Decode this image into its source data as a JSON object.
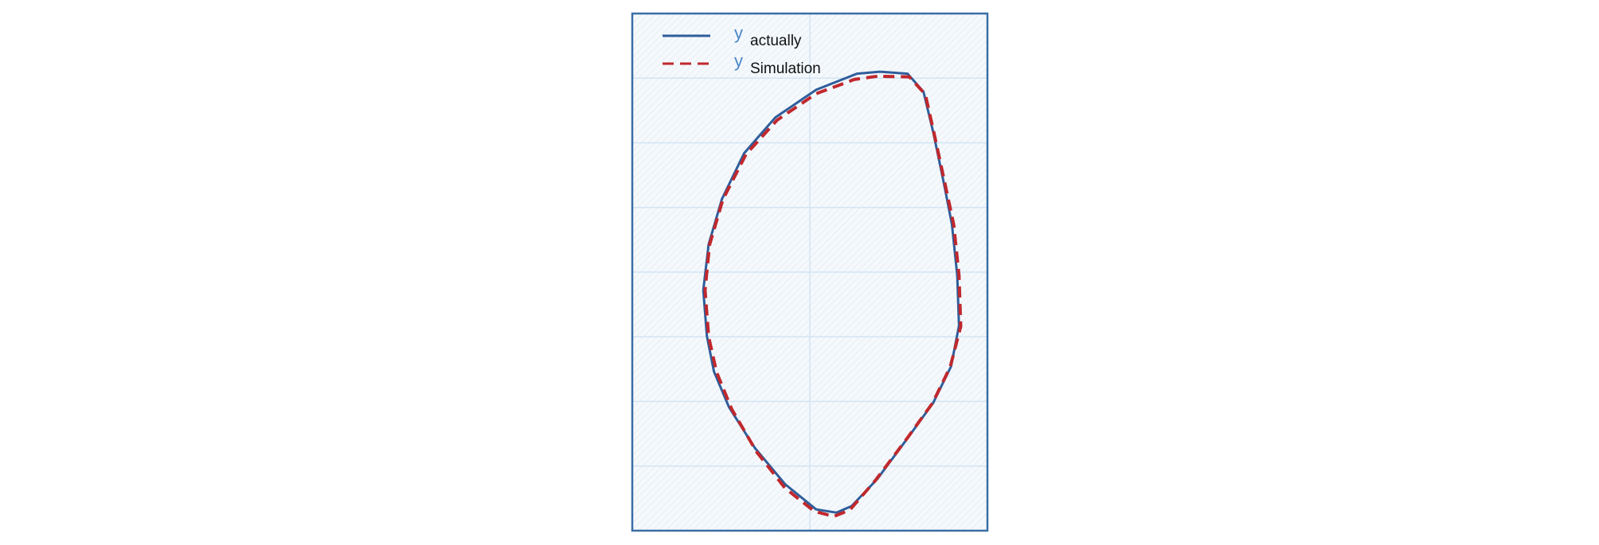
{
  "chart_data": {
    "type": "line",
    "series": [
      {
        "name": "y",
        "subscript": "actually",
        "color": "#2e5d9a",
        "dash": false,
        "x": [
          2.79,
          2.53,
          2.07,
          1.61,
          1.26,
          1.01,
          0.86,
          0.8,
          0.84,
          0.92,
          1.09,
          1.38,
          1.72,
          2.07,
          2.3,
          2.47,
          2.76,
          3.1,
          3.39,
          3.59,
          3.68,
          3.66,
          3.6,
          3.51,
          3.39,
          3.28,
          3.1,
          2.79
        ],
        "values": [
          7.1,
          7.07,
          6.82,
          6.39,
          5.84,
          5.13,
          4.43,
          3.72,
          3.01,
          2.46,
          1.91,
          1.28,
          0.72,
          0.33,
          0.28,
          0.38,
          0.8,
          1.43,
          1.98,
          2.54,
          3.17,
          3.95,
          4.74,
          5.37,
          6.16,
          6.79,
          7.07,
          7.1
        ]
      },
      {
        "name": "y",
        "subscript": "Simulation",
        "color": "#c0282d",
        "dash": true,
        "x": [
          2.76,
          2.5,
          2.07,
          1.63,
          1.28,
          1.02,
          0.87,
          0.82,
          0.86,
          0.95,
          1.12,
          1.4,
          1.72,
          2.05,
          2.27,
          2.45,
          2.74,
          3.08,
          3.38,
          3.58,
          3.7,
          3.68,
          3.62,
          3.52,
          3.4,
          3.3,
          3.12,
          2.76
        ],
        "values": [
          7.03,
          6.98,
          6.76,
          6.35,
          5.82,
          5.12,
          4.42,
          3.72,
          3.0,
          2.45,
          1.88,
          1.22,
          0.66,
          0.3,
          0.22,
          0.32,
          0.78,
          1.4,
          1.97,
          2.53,
          3.16,
          3.95,
          4.74,
          5.38,
          6.14,
          6.75,
          7.02,
          7.03
        ]
      }
    ],
    "xlim": [
      0,
      4
    ],
    "ylim": [
      0,
      8
    ],
    "xticks": [
      2
    ],
    "yticks": [
      1,
      2,
      3,
      4,
      5,
      6,
      7
    ],
    "grid": true
  }
}
